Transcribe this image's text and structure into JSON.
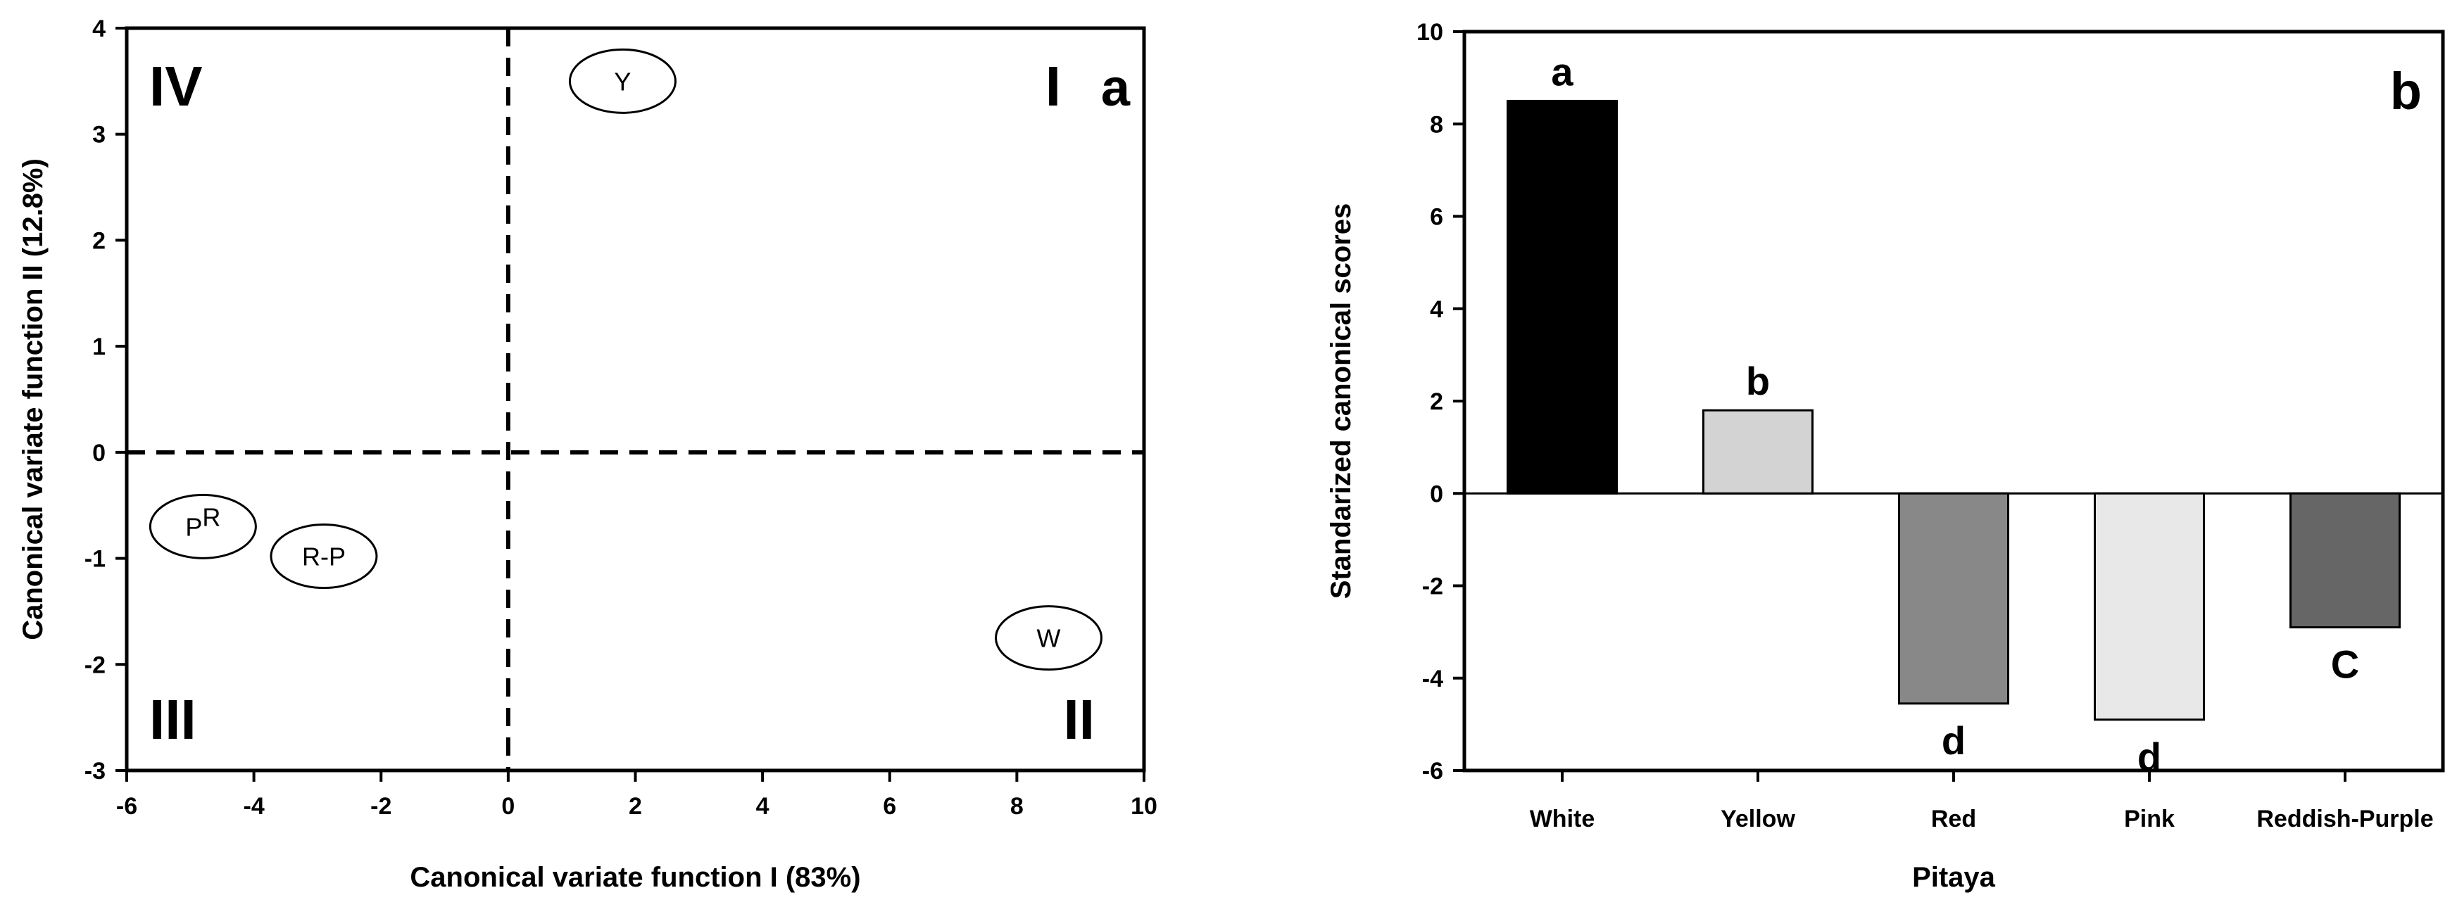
{
  "chart_data": [
    {
      "type": "scatter",
      "panel_label": "a",
      "xlabel": "Canonical variate function I (83%)",
      "ylabel": "Canonical variate function II (12.8%)",
      "xlim": [
        -6,
        10
      ],
      "ylim": [
        -3,
        4
      ],
      "xticks": [
        "-6",
        "-4",
        "-2",
        "0",
        "2",
        "4",
        "6",
        "8",
        "10"
      ],
      "yticks": [
        "-3",
        "-2",
        "-1",
        "0",
        "1",
        "2",
        "3",
        "4"
      ],
      "reference_lines": {
        "x": 0,
        "y": 0,
        "style": "dashed"
      },
      "quadrant_labels": {
        "top_left": "IV",
        "top_right": "I",
        "bottom_left": "III",
        "bottom_right": "II"
      },
      "points": [
        {
          "label": "Y",
          "x": 1.8,
          "y": 3.5
        },
        {
          "label": "W",
          "x": 8.5,
          "y": -1.75
        },
        {
          "label": "R-P",
          "x": -2.9,
          "y": -0.98
        },
        {
          "label_main": "P",
          "label_sup": "R",
          "x": -4.8,
          "y": -0.7
        }
      ]
    },
    {
      "type": "bar",
      "panel_label": "b",
      "xlabel": "Pitaya",
      "ylabel": "Standarized canonical scores",
      "ylim": [
        -6,
        10
      ],
      "yticks": [
        "-6",
        "-4",
        "-2",
        "0",
        "2",
        "4",
        "6",
        "8",
        "10"
      ],
      "categories": [
        "White",
        "Yellow",
        "Red",
        "Pink",
        "Reddish-Purple"
      ],
      "values": [
        8.5,
        1.8,
        -4.55,
        -4.9,
        -2.9
      ],
      "colors": [
        "#000000",
        "#d3d3d3",
        "#888888",
        "#e8e8e8",
        "#666666"
      ],
      "significance_labels": [
        "a",
        "b",
        "d",
        "d",
        "C"
      ]
    }
  ]
}
